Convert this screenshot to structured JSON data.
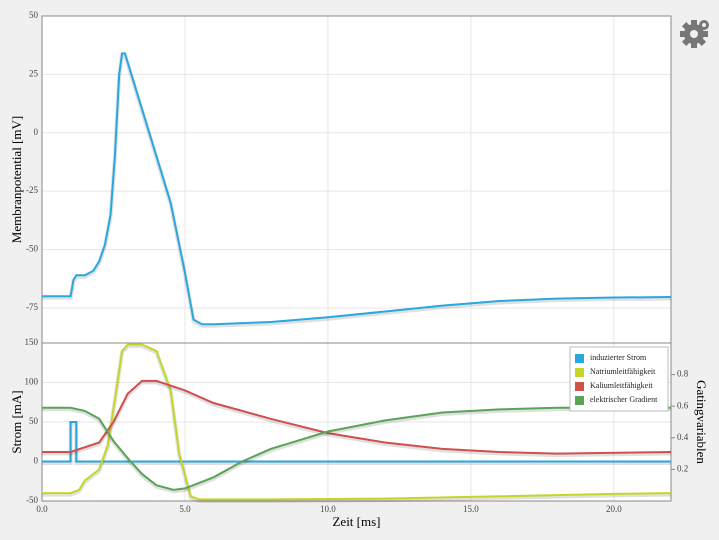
{
  "chart_data": [
    {
      "type": "line",
      "ylabel": "Membranpotential [mV]",
      "xlim": [
        0,
        22
      ],
      "xticks": [
        0,
        5,
        10,
        15,
        20
      ],
      "ylim": [
        -90,
        50
      ],
      "yticks": [
        50,
        25,
        0,
        -25,
        -50,
        -75
      ],
      "grid": true,
      "series": [
        {
          "color": "#29a8e0",
          "x": [
            0,
            1.0,
            1.1,
            1.2,
            1.5,
            1.8,
            2.0,
            2.2,
            2.4,
            2.55,
            2.7,
            2.8,
            2.9,
            3.0,
            3.5,
            4.0,
            4.5,
            5.0,
            5.3,
            5.6,
            6,
            8,
            10,
            12,
            14,
            16,
            18,
            20,
            22
          ],
          "values": [
            -70,
            -70,
            -63,
            -61,
            -61,
            -59,
            -55,
            -48,
            -35,
            -10,
            25,
            34,
            34,
            30,
            10,
            -10,
            -30,
            -60,
            -80,
            -82,
            -82,
            -81,
            -79,
            -76.5,
            -74,
            -72,
            -71,
            -70.5,
            -70.3
          ]
        }
      ]
    },
    {
      "type": "line",
      "xlabel": "Zeit [ms]",
      "ylabel": "Strom [mA]",
      "y2label": "Gatingvariablen",
      "xlim": [
        0,
        22
      ],
      "xticks": [
        {
          "value": 0,
          "label": "0.0"
        },
        {
          "value": 5,
          "label": "5.0"
        },
        {
          "value": 10,
          "label": "10.0"
        },
        {
          "value": 15,
          "label": "15.0"
        },
        {
          "value": 20,
          "label": "20.0"
        }
      ],
      "ylim": [
        -50,
        150
      ],
      "yticks": [
        150,
        100,
        50,
        0,
        -50
      ],
      "y2lim": [
        0,
        1
      ],
      "y2ticks": [
        0.8,
        0.6,
        0.4,
        0.2
      ],
      "grid": true,
      "legend": "top-right",
      "series": [
        {
          "name": "induzierter Strom",
          "color": "#29a8e0",
          "x": [
            0,
            1.0,
            1.0,
            1.2,
            1.2,
            22
          ],
          "values": [
            0,
            0,
            50,
            50,
            0,
            0
          ]
        },
        {
          "name": "Natriumleitfähigkeit",
          "color": "#c5d628",
          "axis": "y2",
          "x": [
            0,
            1.0,
            1.3,
            1.5,
            2.0,
            2.3,
            2.6,
            2.8,
            3.0,
            3.5,
            4.0,
            4.5,
            4.8,
            5.2,
            5.5,
            8,
            12,
            16,
            20,
            22
          ],
          "values": [
            0.05,
            0.05,
            0.07,
            0.13,
            0.2,
            0.35,
            0.7,
            0.95,
            0.99,
            0.99,
            0.95,
            0.7,
            0.3,
            0.03,
            0.01,
            0.01,
            0.015,
            0.03,
            0.045,
            0.05
          ]
        },
        {
          "name": "Kaliumleitfähigkeit",
          "color": "#d0504e",
          "axis": "y2",
          "x": [
            0,
            1.0,
            2.0,
            2.5,
            3.0,
            3.5,
            4.0,
            5,
            6,
            8,
            10,
            12,
            14,
            16,
            18,
            22
          ],
          "values": [
            0.31,
            0.31,
            0.37,
            0.5,
            0.68,
            0.76,
            0.76,
            0.7,
            0.62,
            0.52,
            0.43,
            0.37,
            0.33,
            0.31,
            0.3,
            0.31
          ]
        },
        {
          "name": "elektrischer Gradient",
          "color": "#5aa457",
          "axis": "y2",
          "x": [
            0,
            1.0,
            1.5,
            2.0,
            2.5,
            3.0,
            3.5,
            4.0,
            4.6,
            5.0,
            6,
            7,
            8,
            10,
            12,
            14,
            16,
            18,
            22
          ],
          "values": [
            0.59,
            0.59,
            0.57,
            0.52,
            0.38,
            0.27,
            0.17,
            0.1,
            0.07,
            0.08,
            0.15,
            0.25,
            0.33,
            0.44,
            0.51,
            0.56,
            0.58,
            0.59,
            0.59
          ]
        }
      ]
    }
  ]
}
